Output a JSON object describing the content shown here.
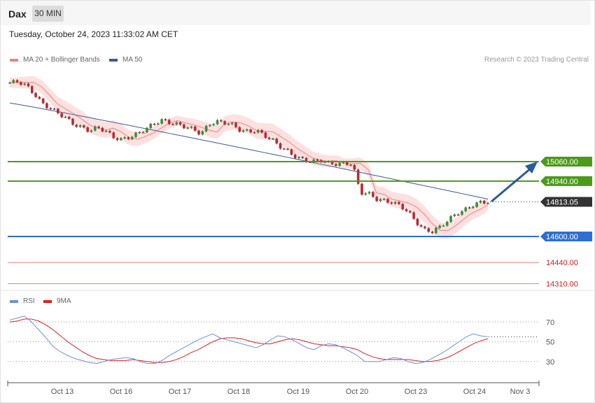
{
  "header": {
    "symbol": "Dax",
    "timeframe": "30 MIN",
    "timestamp": "Tuesday, October 24, 2023 11:33:02 AM CET"
  },
  "legend": {
    "ma20": "MA 20 + Bollinger Bands",
    "ma50": "MA 50",
    "copyright": "Research © 2023 Trading Central"
  },
  "rsi_legend": {
    "rsi": "RSI",
    "ma": "9MA"
  },
  "colors": {
    "up": "#3a8f3a",
    "down": "#c0272d",
    "resistance": "#4c9a1a",
    "pivot": "#2e6fd1",
    "support": "#f08080",
    "current": "#333333",
    "ma50": "#3a5a9a",
    "ma20": "#f08080",
    "band": "#fde0e0",
    "rsi": "#6e8fd8",
    "rsi_ma": "#e02020",
    "arrow": "#2a5a9a"
  },
  "chart_data": [
    {
      "type": "candlestick",
      "title": "Dax",
      "levels": [
        {
          "label": "15060.00",
          "value": 15060,
          "kind": "resistance"
        },
        {
          "label": "14940.00",
          "value": 14940,
          "kind": "resistance"
        },
        {
          "label": "14813.05",
          "value": 14813.05,
          "kind": "current"
        },
        {
          "label": "14600.00",
          "value": 14600,
          "kind": "pivot"
        },
        {
          "label": "14440.00",
          "value": 14440,
          "kind": "support"
        },
        {
          "label": "14310.00",
          "value": 14310,
          "kind": "support"
        }
      ],
      "x_ticks": [
        "Oct 13",
        "Oct 16",
        "Oct 17",
        "Oct 18",
        "Oct 19",
        "Oct 20",
        "Oct 23",
        "Oct 24",
        "Nov 3"
      ],
      "close_path": [
        15545,
        15552,
        15530,
        15480,
        15420,
        15390,
        15360,
        15330,
        15290,
        15270,
        15250,
        15270,
        15250,
        15210,
        15195,
        15210,
        15230,
        15260,
        15290,
        15315,
        15300,
        15290,
        15275,
        15260,
        15230,
        15290,
        15305,
        15300,
        15285,
        15250,
        15245,
        15250,
        15220,
        15190,
        15150,
        15120,
        15085,
        15070,
        15060,
        15070,
        15050,
        15045,
        15050,
        15045,
        14870,
        14865,
        14830,
        14820,
        14810,
        14790,
        14750,
        14690,
        14640,
        14630,
        14660,
        14700,
        14740,
        14760,
        14790,
        14810,
        14813
      ]
    },
    {
      "type": "line",
      "title": "RSI",
      "series": [
        {
          "name": "RSI"
        },
        {
          "name": "9MA"
        }
      ],
      "yticks": [
        70,
        50,
        30
      ],
      "ylim": [
        10,
        90
      ],
      "rsi": [
        72,
        74,
        76,
        70,
        62,
        54,
        45,
        40,
        36,
        33,
        31,
        29,
        28,
        30,
        32,
        33,
        34,
        33,
        30,
        28,
        28,
        31,
        36,
        40,
        44,
        48,
        52,
        55,
        58,
        54,
        52,
        50,
        48,
        46,
        44,
        47,
        52,
        56,
        55,
        52,
        48,
        44,
        42,
        46,
        48,
        47,
        44,
        40,
        36,
        30,
        30,
        30,
        32,
        34,
        33,
        30,
        28,
        29,
        32,
        36,
        40,
        45,
        50,
        55,
        58,
        56,
        55
      ],
      "ma": [
        70,
        71,
        73,
        73,
        71,
        67,
        62,
        56,
        50,
        45,
        40,
        36,
        33,
        32,
        31,
        31,
        31,
        32,
        31,
        30,
        29,
        29,
        30,
        32,
        35,
        39,
        42,
        46,
        50,
        53,
        54,
        54,
        53,
        51,
        49,
        48,
        48,
        50,
        52,
        53,
        52,
        50,
        48,
        47,
        46,
        46,
        45,
        44,
        42,
        38,
        35,
        33,
        32,
        32,
        32,
        32,
        31,
        30,
        30,
        31,
        33,
        36,
        40,
        44,
        48,
        51,
        53
      ]
    }
  ]
}
